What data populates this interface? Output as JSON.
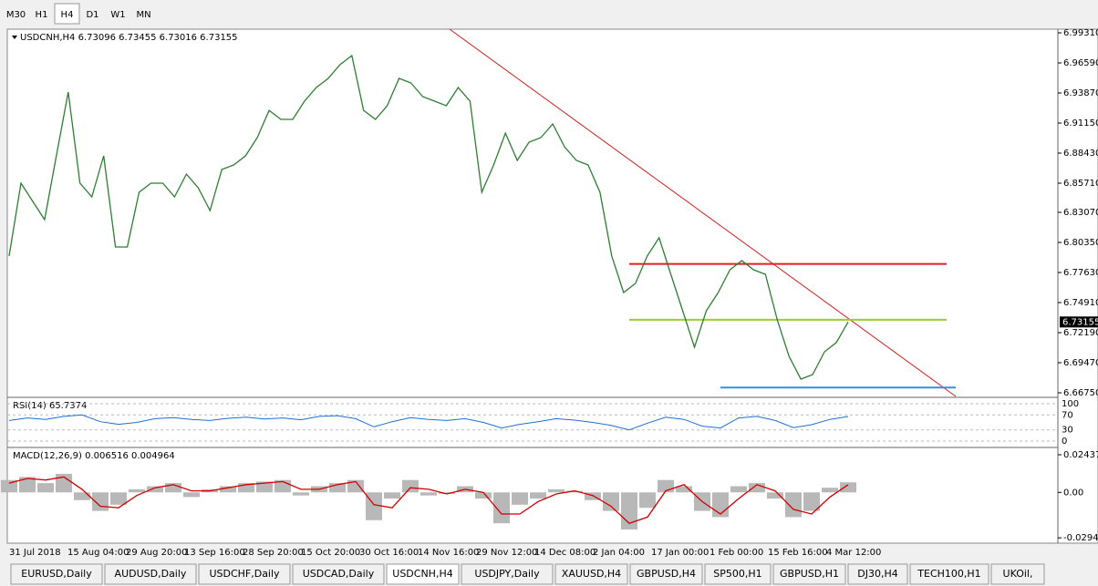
{
  "toolbar": {
    "timeframes": [
      "M30",
      "H1",
      "H4",
      "D1",
      "W1",
      "MN"
    ],
    "active": 2
  },
  "chart": {
    "header": "USDCNH,H4  6.73096 6.73455 6.73016 6.73155",
    "ylim": [
      6.6642,
      6.9956
    ],
    "yticks": [
      {
        "value": 6.9931,
        "label": "6.99310"
      },
      {
        "value": 6.9659,
        "label": "6.96590"
      },
      {
        "value": 6.9387,
        "label": "6.93870"
      },
      {
        "value": 6.9115,
        "label": "6.91150"
      },
      {
        "value": 6.8843,
        "label": "6.88430"
      },
      {
        "value": 6.8571,
        "label": "6.85710"
      },
      {
        "value": 6.8307,
        "label": "6.83070"
      },
      {
        "value": 6.8035,
        "label": "6.80350"
      },
      {
        "value": 6.7763,
        "label": "6.77630"
      },
      {
        "value": 6.7491,
        "label": "6.74910"
      },
      {
        "value": 6.7219,
        "label": "6.72190"
      },
      {
        "value": 6.6947,
        "label": "6.69470"
      },
      {
        "value": 6.6675,
        "label": "6.66750"
      }
    ],
    "last_price": 6.73155,
    "close": {
      "color": "#2e7d32",
      "values": [
        6.7912,
        6.8571,
        6.8406,
        6.8241,
        6.8818,
        6.9395,
        6.8571,
        6.8447,
        6.8818,
        6.7994,
        6.7994,
        6.8489,
        6.8571,
        6.8571,
        6.8447,
        6.8653,
        6.853,
        6.8324,
        6.8695,
        6.8736,
        6.8818,
        6.8983,
        6.923,
        6.9148,
        6.9148,
        6.9313,
        6.9437,
        6.9519,
        6.9643,
        6.9725,
        6.923,
        6.9148,
        6.9272,
        6.9519,
        6.9478,
        6.9354,
        6.9313,
        6.9272,
        6.9437,
        6.9313,
        6.8489,
        6.8736,
        6.9024,
        6.8777,
        6.8942,
        6.8983,
        6.9107,
        6.8901,
        6.8777,
        6.8736,
        6.8489,
        6.7912,
        6.7582,
        6.7664,
        6.7912,
        6.8077,
        6.7747,
        6.7417,
        6.7087,
        6.7417,
        6.7582,
        6.7788,
        6.787,
        6.7788,
        6.7747,
        6.7335,
        6.7005,
        6.6799,
        6.684,
        6.7046,
        6.7129,
        6.73155
      ]
    },
    "levels": [
      {
        "value": 6.784,
        "color": "#e02020"
      },
      {
        "value": 6.7335,
        "color": "#9acd32"
      },
      {
        "value": 6.6722,
        "color": "#3a8fd0"
      }
    ],
    "dates": [
      "31 Jul 2018",
      "15 Aug 04:00",
      "29 Aug 20:00",
      "13 Sep 16:00",
      "28 Sep 20:00",
      "15 Oct 20:00",
      "30 Oct 16:00",
      "14 Nov 16:00",
      "29 Nov 12:00",
      "14 Dec 08:00",
      "2 Jan 04:00",
      "17 Jan 00:00",
      "1 Feb 00:00",
      "15 Feb 16:00",
      "4 Mar 12:00"
    ]
  },
  "rsi": {
    "label": "RSI(14) 65.7374",
    "ylim": [
      0,
      100
    ],
    "yticks": [
      100,
      70,
      30,
      0
    ],
    "color": "#1e6fd0",
    "values": [
      55,
      62,
      58,
      66,
      70,
      52,
      45,
      50,
      60,
      63,
      58,
      55,
      61,
      64,
      59,
      62,
      57,
      66,
      68,
      60,
      38,
      52,
      63,
      58,
      55,
      60,
      50,
      35,
      45,
      52,
      60,
      56,
      50,
      42,
      30,
      48,
      64,
      58,
      40,
      35,
      62,
      66,
      55,
      36,
      44,
      58,
      65.7374
    ]
  },
  "macd": {
    "label": "MACD(12,26,9) 0.006516 0.004964",
    "ylim": [
      -0.0317,
      0.0279
    ],
    "yticks": [
      0.024372,
      {
        "value": 0,
        "label": "0.00"
      },
      -0.029423
    ],
    "hist_color": "#b8b8b8",
    "signal_color": "#d00000",
    "hist": [
      0.008,
      0.01,
      0.006,
      0.012,
      -0.005,
      -0.012,
      -0.008,
      0.002,
      0.004,
      0.006,
      -0.003,
      0.002,
      0.004,
      0.006,
      0.007,
      0.008,
      -0.002,
      0.004,
      0.006,
      0.008,
      -0.018,
      -0.004,
      0.008,
      -0.002,
      -0.001,
      0.004,
      -0.004,
      -0.02,
      -0.008,
      -0.004,
      0.002,
      0.001,
      -0.005,
      -0.012,
      -0.024,
      -0.01,
      0.008,
      0.004,
      -0.012,
      -0.016,
      0.004,
      0.006,
      -0.004,
      -0.016,
      -0.012,
      0.003,
      0.006516
    ],
    "signal": [
      0.006,
      0.009,
      0.008,
      0.01,
      0.002,
      -0.009,
      -0.01,
      -0.002,
      0.003,
      0.005,
      0.001,
      0.001,
      0.003,
      0.005,
      0.006,
      0.007,
      0.002,
      0.002,
      0.005,
      0.007,
      -0.008,
      -0.01,
      0.003,
      0.002,
      -0.001,
      0.002,
      0,
      -0.014,
      -0.014,
      -0.006,
      -0.001,
      0.001,
      -0.002,
      -0.009,
      -0.02,
      -0.016,
      0.001,
      0.005,
      -0.006,
      -0.014,
      -0.004,
      0.005,
      0.001,
      -0.011,
      -0.014,
      -0.003,
      0.004964
    ]
  },
  "tabs": {
    "items": [
      "EURUSD,Daily",
      "AUDUSD,Daily",
      "USDCHF,Daily",
      "USDCAD,Daily",
      "USDCNH,H4",
      "USDJPY,Daily",
      "XAUUSD,H4",
      "GBPUSD,H4",
      "SP500,H1",
      "GBPUSD,H1",
      "DJ30,H4",
      "TECH100,H1",
      "UKOil,"
    ],
    "active": 4
  }
}
